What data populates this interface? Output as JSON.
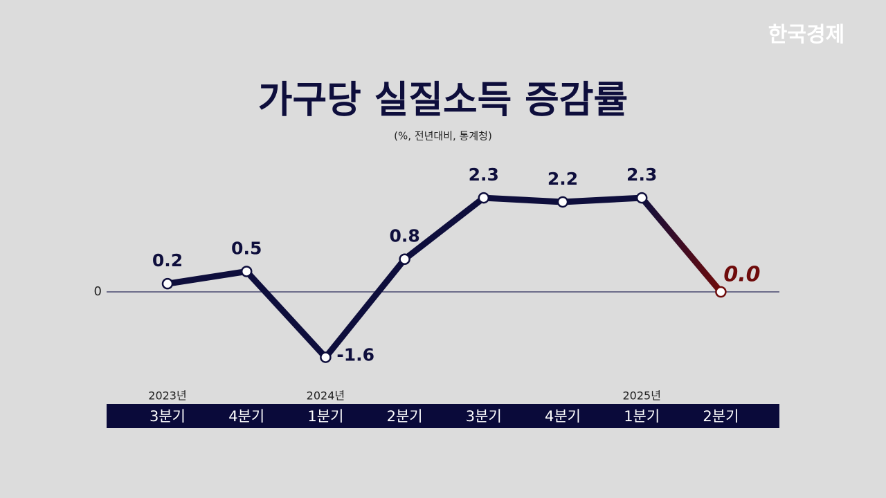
{
  "brand": "한국경제",
  "chart_data": {
    "type": "line",
    "title": "가구당 실질소득 증감률",
    "subtitle": "(%, 전년대비, 통계청)",
    "categories": [
      "3분기",
      "4분기",
      "1분기",
      "2분기",
      "3분기",
      "4분기",
      "1분기",
      "2분기"
    ],
    "years": [
      "2023년",
      null,
      "2024년",
      null,
      null,
      null,
      "2025년",
      null
    ],
    "values": [
      0.2,
      0.5,
      -1.6,
      0.8,
      2.3,
      2.2,
      2.3,
      0.0
    ],
    "value_labels": [
      "0.2",
      "0.5",
      "-1.6",
      "0.8",
      "2.3",
      "2.2",
      "2.3",
      "0.0"
    ],
    "color": "#0e0e3c",
    "last_color": "#6e0b0b",
    "ylim": [
      -1.8,
      2.9
    ],
    "yticks": [
      0
    ]
  }
}
